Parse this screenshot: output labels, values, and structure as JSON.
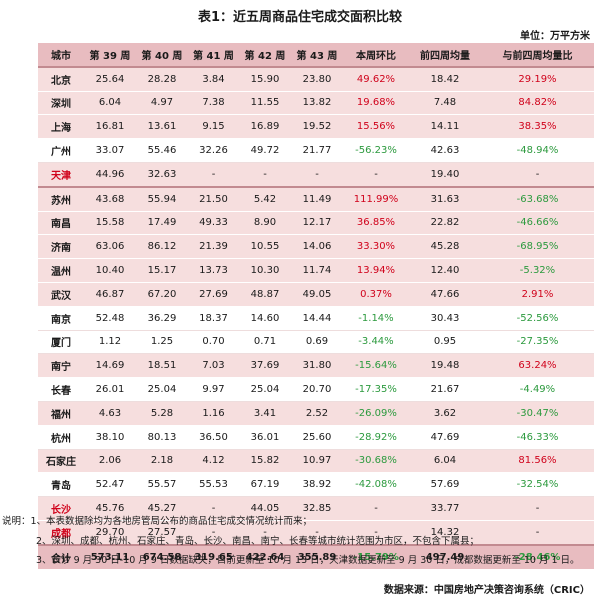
{
  "title": "表1：近五周商品住宅成交面积比较",
  "unit": "单位：万平方米",
  "columns": [
    "城市",
    "第 39 周",
    "第 40 周",
    "第 41 周",
    "第 42 周",
    "第 43 周",
    "本周环比",
    "前四周均量",
    "与前四周均量比"
  ],
  "rows": [
    {
      "city": "北京",
      "v": [
        "25.64",
        "28.28",
        "3.84",
        "15.90",
        "23.80",
        "49.62%",
        "18.42",
        "29.19%"
      ]
    },
    {
      "city": "深圳",
      "v": [
        "6.04",
        "4.97",
        "7.38",
        "11.55",
        "13.82",
        "19.68%",
        "7.48",
        "84.82%"
      ]
    },
    {
      "city": "上海",
      "v": [
        "16.81",
        "13.61",
        "9.15",
        "16.89",
        "19.52",
        "15.56%",
        "14.11",
        "38.35%"
      ]
    },
    {
      "city": "广州",
      "v": [
        "33.07",
        "55.46",
        "32.26",
        "49.72",
        "21.77",
        "-56.23%",
        "42.63",
        "-48.94%"
      ]
    },
    {
      "city": "天津",
      "v": [
        "44.96",
        "32.63",
        "-",
        "-",
        "-",
        "-",
        "19.40",
        "-"
      ]
    },
    {
      "city": "苏州",
      "v": [
        "43.68",
        "55.94",
        "21.50",
        "5.42",
        "11.49",
        "111.99%",
        "31.63",
        "-63.68%"
      ]
    },
    {
      "city": "南昌",
      "v": [
        "15.58",
        "17.49",
        "49.33",
        "8.90",
        "12.17",
        "36.85%",
        "22.82",
        "-46.66%"
      ]
    },
    {
      "city": "济南",
      "v": [
        "63.06",
        "86.12",
        "21.39",
        "10.55",
        "14.06",
        "33.30%",
        "45.28",
        "-68.95%"
      ]
    },
    {
      "city": "温州",
      "v": [
        "10.40",
        "15.17",
        "13.73",
        "10.30",
        "11.74",
        "13.94%",
        "12.40",
        "-5.32%"
      ]
    },
    {
      "city": "武汉",
      "v": [
        "46.87",
        "67.20",
        "27.69",
        "48.87",
        "49.05",
        "0.37%",
        "47.66",
        "2.91%"
      ]
    },
    {
      "city": "南京",
      "v": [
        "52.48",
        "36.29",
        "18.37",
        "14.60",
        "14.44",
        "-1.14%",
        "30.43",
        "-52.56%"
      ]
    },
    {
      "city": "厦门",
      "v": [
        "1.12",
        "1.25",
        "0.70",
        "0.71",
        "0.69",
        "-3.44%",
        "0.95",
        "-27.35%"
      ]
    },
    {
      "city": "南宁",
      "v": [
        "14.69",
        "18.51",
        "7.03",
        "37.69",
        "31.80",
        "-15.64%",
        "19.48",
        "63.24%"
      ]
    },
    {
      "city": "长春",
      "v": [
        "26.01",
        "25.04",
        "9.97",
        "25.04",
        "20.70",
        "-17.35%",
        "21.67",
        "-4.49%"
      ]
    },
    {
      "city": "福州",
      "v": [
        "4.63",
        "5.28",
        "1.16",
        "3.41",
        "2.52",
        "-26.09%",
        "3.62",
        "-30.47%"
      ]
    },
    {
      "city": "杭州",
      "v": [
        "38.10",
        "80.13",
        "36.50",
        "36.01",
        "25.60",
        "-28.92%",
        "47.69",
        "-46.33%"
      ]
    },
    {
      "city": "石家庄",
      "v": [
        "2.06",
        "2.18",
        "4.12",
        "15.82",
        "10.97",
        "-30.68%",
        "6.04",
        "81.56%"
      ]
    },
    {
      "city": "青岛",
      "v": [
        "52.47",
        "55.57",
        "55.53",
        "67.19",
        "38.92",
        "-42.08%",
        "57.69",
        "-32.54%"
      ]
    },
    {
      "city": "长沙",
      "v": [
        "45.76",
        "45.27",
        "-",
        "44.05",
        "32.85",
        "-",
        "33.77",
        "-"
      ]
    },
    {
      "city": "成都",
      "v": [
        "29.70",
        "27.57",
        "-",
        "-",
        "-",
        "-",
        "14.32",
        "-"
      ]
    }
  ],
  "total": {
    "city": "合计",
    "v": [
      "573.11",
      "674.58",
      "319.65",
      "422.64",
      "355.89",
      "-15.79%",
      "497.49",
      "-28.46%"
    ]
  },
  "notes": [
    "说明：1、本表数据除均为各地房管局公布的商品住宅成交情况统计而来；",
    "2、深圳、成都、杭州、石家庄、青岛、长沙、南昌、南宁、长春等城市统计范围为市区，不包含下属县；",
    "3、长沙 9 月 30 日-10 月 9 日数据缺失，目前更新至 10 月 13 日，天津数据更新至 9 月 30 日，成都数据更新至 10 月 1 日。"
  ],
  "source": "数据来源：中国房地产决策咨询系统（CRIC）",
  "colors": {
    "header_bg": "#e8bcc0",
    "row_pink": "#f6dede",
    "positive": "#d0021b",
    "negative": "#2c9a3e"
  }
}
